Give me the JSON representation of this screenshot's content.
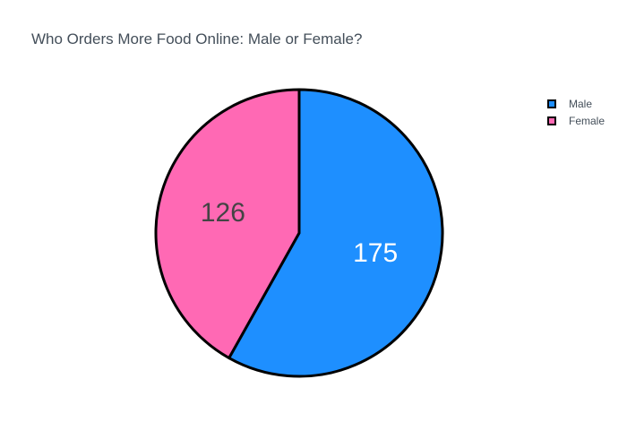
{
  "chart_data": {
    "type": "pie",
    "title": "Who Orders More Food Online: Male or Female?",
    "slices": [
      {
        "label": "Male",
        "value": 175,
        "color": "#1e8fff",
        "text_color": "#ffffff"
      },
      {
        "label": "Female",
        "value": 126,
        "color": "#ff69b4",
        "text_color": "#444444"
      }
    ],
    "sort": "descending",
    "direction": "clockwise",
    "start_angle": "top",
    "slice_border_color": "#000000",
    "legend_position": "top-right",
    "show_values": true
  }
}
